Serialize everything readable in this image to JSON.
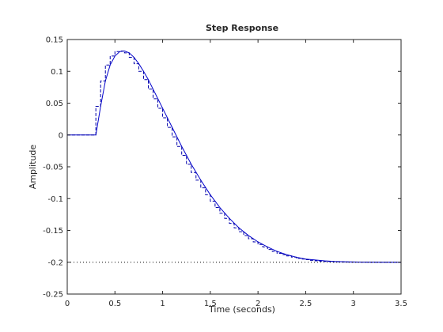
{
  "chart_data": {
    "type": "line",
    "title": "Step Response",
    "xlabel": "Time (seconds)",
    "ylabel": "Amplitude",
    "xlim": [
      0,
      3.5
    ],
    "ylim": [
      -0.25,
      0.15
    ],
    "xticks": [
      0,
      0.5,
      1,
      1.5,
      2,
      2.5,
      3,
      3.5
    ],
    "xtick_labels": [
      "0",
      "0.5",
      "1",
      "1.5",
      "2",
      "2.5",
      "3",
      "3.5"
    ],
    "yticks": [
      -0.25,
      -0.2,
      -0.15,
      -0.1,
      -0.05,
      0,
      0.05,
      0.1,
      0.15
    ],
    "ytick_labels": [
      "-0.25",
      "-0.2",
      "-0.15",
      "-0.1",
      "-0.05",
      "0",
      "0.05",
      "0.1",
      "0.15"
    ],
    "grid": false,
    "steady_state": -0.2,
    "colors": {
      "continuous": "#0000cc",
      "discrete": "#0000aa",
      "reference": "#000000",
      "axes": "#262626"
    },
    "series": [
      {
        "style": "solid",
        "x": [
          0,
          0.3,
          0.35,
          0.4,
          0.45,
          0.5,
          0.55,
          0.6,
          0.65,
          0.7,
          0.75,
          0.8,
          0.85,
          0.9,
          0.95,
          1.0,
          1.1,
          1.2,
          1.3,
          1.4,
          1.5,
          1.6,
          1.7,
          1.8,
          1.9,
          2.0,
          2.1,
          2.2,
          2.3,
          2.4,
          2.5,
          2.6,
          2.7,
          2.8,
          2.9,
          3.0,
          3.1,
          3.2,
          3.3,
          3.4,
          3.5
        ],
        "y": [
          0,
          0,
          0.045,
          0.085,
          0.11,
          0.124,
          0.131,
          0.132,
          0.129,
          0.122,
          0.112,
          0.1,
          0.087,
          0.072,
          0.057,
          0.042,
          0.012,
          -0.018,
          -0.046,
          -0.071,
          -0.094,
          -0.114,
          -0.131,
          -0.146,
          -0.158,
          -0.168,
          -0.176,
          -0.183,
          -0.188,
          -0.192,
          -0.195,
          -0.1965,
          -0.1978,
          -0.1987,
          -0.1992,
          -0.1996,
          -0.1998,
          -0.1999,
          -0.2,
          -0.2,
          -0.2
        ]
      },
      {
        "style": "dashed-step",
        "x": [
          0,
          0.3,
          0.35,
          0.4,
          0.45,
          0.5,
          0.55,
          0.6,
          0.65,
          0.7,
          0.75,
          0.8,
          0.85,
          0.9,
          0.95,
          1.0,
          1.05,
          1.1,
          1.15,
          1.2,
          1.25,
          1.3,
          1.35,
          1.4,
          1.45,
          1.5,
          1.55,
          1.6,
          1.65,
          1.7,
          1.75,
          1.8,
          1.85,
          1.9,
          1.95,
          2.0,
          2.05,
          2.1,
          2.15,
          2.2,
          2.25,
          2.3,
          2.35,
          2.4,
          2.45,
          2.5,
          2.55,
          2.6,
          2.65,
          2.7,
          2.75,
          2.8,
          2.85,
          2.9,
          2.95,
          3.0,
          3.05,
          3.1,
          3.15,
          3.2,
          3.25,
          3.3,
          3.35,
          3.4,
          3.45
        ],
        "y": [
          0,
          0.045,
          0.085,
          0.11,
          0.124,
          0.131,
          0.132,
          0.129,
          0.122,
          0.112,
          0.1,
          0.087,
          0.072,
          0.057,
          0.042,
          0.027,
          0.012,
          -0.003,
          -0.018,
          -0.032,
          -0.046,
          -0.059,
          -0.071,
          -0.083,
          -0.094,
          -0.104,
          -0.114,
          -0.123,
          -0.131,
          -0.139,
          -0.146,
          -0.152,
          -0.158,
          -0.163,
          -0.168,
          -0.172,
          -0.176,
          -0.18,
          -0.183,
          -0.186,
          -0.188,
          -0.19,
          -0.192,
          -0.194,
          -0.195,
          -0.196,
          -0.197,
          -0.1978,
          -0.1984,
          -0.1988,
          -0.1991,
          -0.1993,
          -0.1995,
          -0.1997,
          -0.1998,
          -0.1998,
          -0.1999,
          -0.1999,
          -0.2,
          -0.2,
          -0.2,
          -0.2,
          -0.2,
          -0.2,
          -0.2
        ]
      }
    ]
  }
}
